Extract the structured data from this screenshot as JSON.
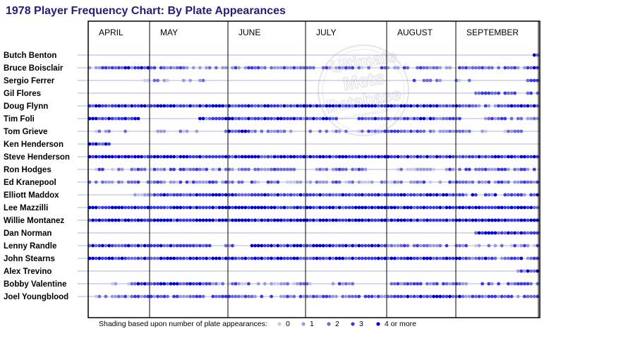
{
  "chart_data": {
    "type": "scatter",
    "title": "1978 Player Frequency Chart: By Plate Appearances",
    "months": [
      "APRIL",
      "MAY",
      "JUNE",
      "JULY",
      "AUGUST",
      "SEPTEMBER"
    ],
    "players": [
      "Butch Benton",
      "Bruce Boisclair",
      "Sergio Ferrer",
      "Gil Flores",
      "Doug Flynn",
      "Tim Foli",
      "Tom Grieve",
      "Ken Henderson",
      "Steve Henderson",
      "Ron Hodges",
      "Ed Kranepool",
      "Elliott Maddox",
      "Lee Mazzilli",
      "Willie Montanez",
      "Dan Norman",
      "Lenny Randle",
      "John Stearns",
      "Alex Trevino",
      "Bobby Valentine",
      "Joel Youngblood"
    ],
    "legend": {
      "caption": "Shading based upon number of plate appearances:",
      "levels": [
        "0",
        "1",
        "2",
        "3",
        "4 or more"
      ],
      "colors": [
        "#c8c8ee",
        "#9a9ae0",
        "#6a6ad8",
        "#3a3ae0",
        "#0000cc"
      ]
    },
    "activity": [
      {
        "player": "Butch Benton",
        "segments": [
          [
            0.905,
            0.91,
            0.55
          ],
          [
            0.985,
            1.0,
            0.7
          ]
        ]
      },
      {
        "player": "Bruce Boisclair",
        "segments": [
          [
            0.0,
            0.07,
            0.45
          ],
          [
            0.07,
            0.15,
            0.7
          ],
          [
            0.15,
            0.35,
            0.45
          ],
          [
            0.35,
            0.48,
            0.5
          ],
          [
            0.48,
            0.7,
            0.45
          ],
          [
            0.7,
            0.82,
            0.45
          ],
          [
            0.82,
            1.0,
            0.55
          ]
        ]
      },
      {
        "player": "Sergio Ferrer",
        "segments": [
          [
            0.11,
            0.25,
            0.2
          ],
          [
            0.25,
            0.26,
            0.4
          ],
          [
            0.72,
            0.85,
            0.3
          ],
          [
            0.975,
            1.0,
            0.7
          ]
        ]
      },
      {
        "player": "Gil Flores",
        "segments": [
          [
            0.855,
            0.95,
            0.5
          ],
          [
            0.975,
            1.0,
            0.6
          ]
        ]
      },
      {
        "player": "Doug Flynn",
        "segments": [
          [
            0.0,
            0.83,
            0.85
          ],
          [
            0.83,
            0.92,
            0.4
          ],
          [
            0.92,
            1.0,
            0.8
          ]
        ]
      },
      {
        "player": "Tim Foli",
        "segments": [
          [
            0.0,
            0.11,
            0.8
          ],
          [
            0.245,
            0.55,
            0.7
          ],
          [
            0.6,
            0.83,
            0.65
          ],
          [
            0.87,
            1.0,
            0.5
          ]
        ]
      },
      {
        "player": "Tom Grieve",
        "segments": [
          [
            0.01,
            0.1,
            0.3
          ],
          [
            0.15,
            0.26,
            0.3
          ],
          [
            0.3,
            0.36,
            0.75
          ],
          [
            0.36,
            0.58,
            0.3
          ],
          [
            0.6,
            0.83,
            0.45
          ],
          [
            0.83,
            0.9,
            0.3
          ],
          [
            0.92,
            0.97,
            0.3
          ]
        ]
      },
      {
        "player": "Ken Henderson",
        "segments": [
          [
            0.0,
            0.045,
            0.8
          ]
        ]
      },
      {
        "player": "Steve Henderson",
        "segments": [
          [
            0.0,
            0.67,
            0.9
          ],
          [
            0.67,
            0.72,
            0.6
          ],
          [
            0.72,
            1.0,
            0.75
          ]
        ]
      },
      {
        "player": "Ron Hodges",
        "segments": [
          [
            0.01,
            0.14,
            0.4
          ],
          [
            0.14,
            0.22,
            0.5
          ],
          [
            0.22,
            0.3,
            0.4
          ],
          [
            0.3,
            0.46,
            0.45
          ],
          [
            0.5,
            0.62,
            0.45
          ],
          [
            0.68,
            0.82,
            0.3
          ],
          [
            0.82,
            1.0,
            0.55
          ]
        ]
      },
      {
        "player": "Ed Kranepool",
        "segments": [
          [
            0.0,
            0.3,
            0.4
          ],
          [
            0.3,
            0.49,
            0.35
          ],
          [
            0.49,
            0.83,
            0.35
          ],
          [
            0.83,
            1.0,
            0.5
          ]
        ]
      },
      {
        "player": "Elliott Maddox",
        "segments": [
          [
            0.1,
            0.14,
            0.4
          ],
          [
            0.14,
            0.3,
            0.75
          ],
          [
            0.3,
            0.49,
            0.75
          ],
          [
            0.49,
            0.83,
            0.75
          ],
          [
            0.83,
            1.0,
            0.55
          ]
        ]
      },
      {
        "player": "Lee Mazzilli",
        "segments": [
          [
            0.0,
            1.0,
            0.9
          ]
        ]
      },
      {
        "player": "Willie Montanez",
        "segments": [
          [
            0.0,
            1.0,
            0.9
          ]
        ]
      },
      {
        "player": "Dan Norman",
        "segments": [
          [
            0.855,
            1.0,
            0.75
          ]
        ]
      },
      {
        "player": "Lenny Randle",
        "segments": [
          [
            0.0,
            0.14,
            0.75
          ],
          [
            0.14,
            0.27,
            0.75
          ],
          [
            0.3,
            0.32,
            0.4
          ],
          [
            0.36,
            0.66,
            0.85
          ],
          [
            0.66,
            0.83,
            0.45
          ],
          [
            0.83,
            1.0,
            0.4
          ]
        ]
      },
      {
        "player": "John Stearns",
        "segments": [
          [
            0.0,
            0.3,
            0.75
          ],
          [
            0.3,
            0.83,
            0.8
          ],
          [
            0.83,
            1.0,
            0.6
          ]
        ]
      },
      {
        "player": "Alex Trevino",
        "segments": [
          [
            0.89,
            0.9,
            0.4
          ],
          [
            0.95,
            0.97,
            0.45
          ],
          [
            0.97,
            1.0,
            0.85
          ]
        ]
      },
      {
        "player": "Bobby Valentine",
        "segments": [
          [
            0.05,
            0.09,
            0.35
          ],
          [
            0.09,
            0.27,
            0.75
          ],
          [
            0.27,
            0.49,
            0.35
          ],
          [
            0.49,
            0.6,
            0.3
          ],
          [
            0.66,
            0.84,
            0.5
          ],
          [
            0.87,
            1.0,
            0.5
          ]
        ]
      },
      {
        "player": "Joel Youngblood",
        "segments": [
          [
            0.0,
            0.1,
            0.45
          ],
          [
            0.1,
            0.3,
            0.5
          ],
          [
            0.3,
            0.66,
            0.5
          ],
          [
            0.66,
            0.83,
            0.7
          ],
          [
            0.83,
            1.0,
            0.55
          ]
        ]
      }
    ],
    "grid": true,
    "legend_placement": "bottom"
  },
  "watermark": {
    "lines": [
      "Ultimate",
      "Mets",
      "Database"
    ],
    "url": "www.ultimatemets.com"
  }
}
